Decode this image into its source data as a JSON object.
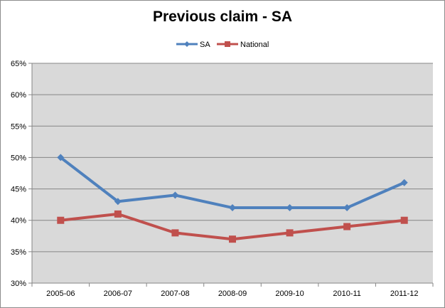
{
  "chart_data": {
    "type": "line",
    "title": "Previous claim - SA",
    "xlabel": "",
    "ylabel": "",
    "categories": [
      "2005-06",
      "2006-07",
      "2007-08",
      "2008-09",
      "2009-10",
      "2010-11",
      "2011-12"
    ],
    "series": [
      {
        "name": "SA",
        "values": [
          50,
          43,
          44,
          42,
          42,
          42,
          46
        ],
        "color": "#4f81bd",
        "marker": "diamond"
      },
      {
        "name": "National",
        "values": [
          40,
          41,
          38,
          37,
          38,
          39,
          40
        ],
        "color": "#c0504d",
        "marker": "square"
      }
    ],
    "ylim": [
      30,
      65
    ],
    "yticks": [
      "30%",
      "35%",
      "40%",
      "45%",
      "50%",
      "55%",
      "60%",
      "65%"
    ],
    "ytick_values": [
      30,
      35,
      40,
      45,
      50,
      55,
      60,
      65
    ],
    "grid": true,
    "plot_background": "#d9d9d9",
    "legend_position": "top"
  }
}
